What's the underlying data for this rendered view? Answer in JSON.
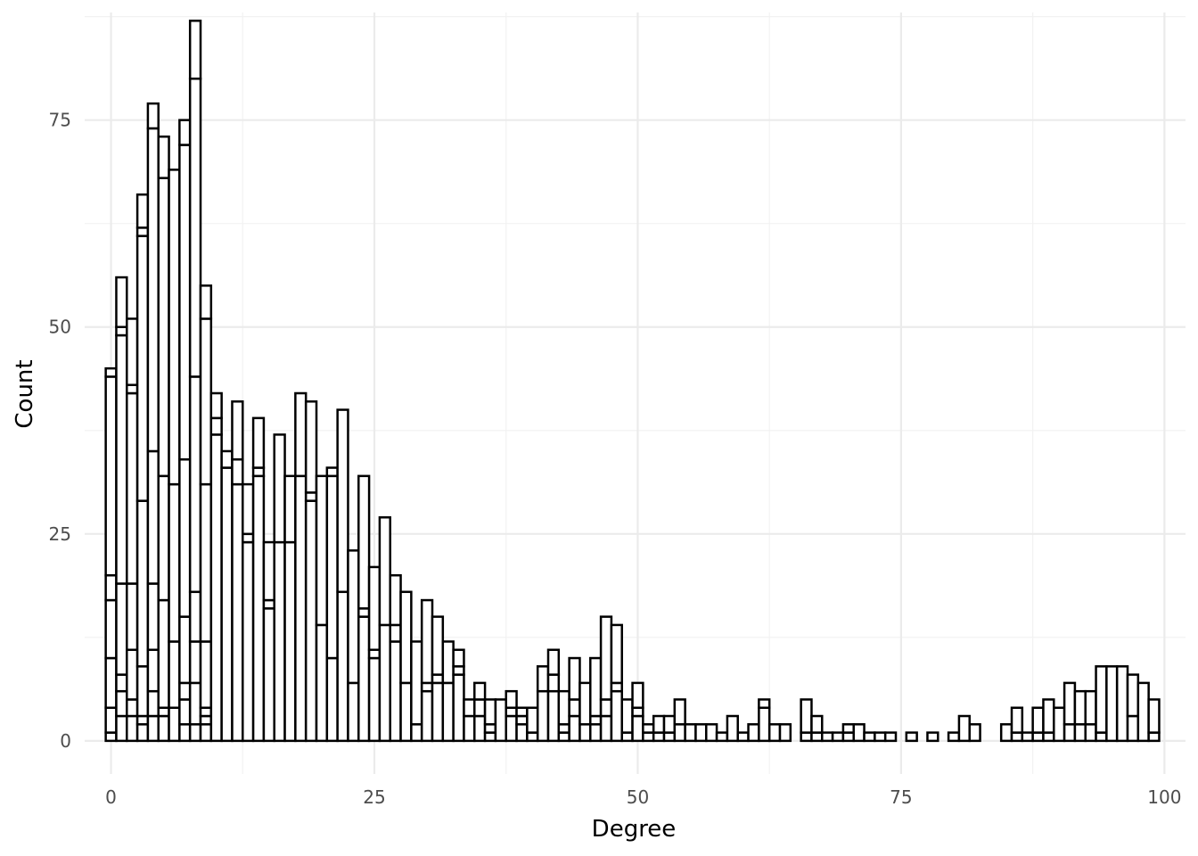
{
  "chart_data": {
    "type": "bar",
    "subtype": "stacked-histogram",
    "xlabel": "Degree",
    "ylabel": "Count",
    "xlim": [
      -2.5,
      102
    ],
    "ylim": [
      -4,
      88
    ],
    "x_ticks": [
      0,
      25,
      50,
      75,
      100
    ],
    "y_ticks": [
      0,
      25,
      50,
      75
    ],
    "grid": true,
    "legend": "none",
    "bin_width": 1,
    "bar_fill": "#ffffff",
    "bar_stroke": "#000000",
    "bins": [
      {
        "x": 0,
        "stack": [
          1,
          4,
          10,
          17,
          20,
          44,
          45
        ]
      },
      {
        "x": 1,
        "stack": [
          3,
          6,
          8,
          19,
          49,
          50,
          56
        ]
      },
      {
        "x": 2,
        "stack": [
          3,
          5,
          11,
          19,
          42,
          43,
          51
        ]
      },
      {
        "x": 3,
        "stack": [
          2,
          3,
          9,
          29,
          61,
          62,
          66
        ]
      },
      {
        "x": 4,
        "stack": [
          3,
          6,
          11,
          19,
          35,
          74,
          77
        ]
      },
      {
        "x": 5,
        "stack": [
          3,
          4,
          17,
          32,
          68,
          73
        ]
      },
      {
        "x": 6,
        "stack": [
          4,
          12,
          31,
          69
        ]
      },
      {
        "x": 7,
        "stack": [
          2,
          5,
          7,
          15,
          34,
          72,
          75
        ]
      },
      {
        "x": 8,
        "stack": [
          2,
          7,
          12,
          18,
          44,
          80,
          87
        ]
      },
      {
        "x": 9,
        "stack": [
          2,
          3,
          4,
          12,
          31,
          51,
          55
        ]
      },
      {
        "x": 10,
        "stack": [
          37,
          39,
          42
        ]
      },
      {
        "x": 11,
        "stack": [
          33,
          35
        ]
      },
      {
        "x": 12,
        "stack": [
          31,
          34,
          41
        ]
      },
      {
        "x": 13,
        "stack": [
          24,
          25,
          31
        ]
      },
      {
        "x": 14,
        "stack": [
          32,
          33,
          39
        ]
      },
      {
        "x": 15,
        "stack": [
          16,
          17,
          24
        ]
      },
      {
        "x": 16,
        "stack": [
          24,
          37
        ]
      },
      {
        "x": 17,
        "stack": [
          24,
          32
        ]
      },
      {
        "x": 18,
        "stack": [
          32,
          42
        ]
      },
      {
        "x": 19,
        "stack": [
          29,
          30,
          41
        ]
      },
      {
        "x": 20,
        "stack": [
          14,
          32
        ]
      },
      {
        "x": 21,
        "stack": [
          10,
          32,
          33
        ]
      },
      {
        "x": 22,
        "stack": [
          18,
          40
        ]
      },
      {
        "x": 23,
        "stack": [
          7,
          23
        ]
      },
      {
        "x": 24,
        "stack": [
          15,
          16,
          32
        ]
      },
      {
        "x": 25,
        "stack": [
          10,
          11,
          21
        ]
      },
      {
        "x": 26,
        "stack": [
          14,
          27
        ]
      },
      {
        "x": 27,
        "stack": [
          12,
          14,
          20
        ]
      },
      {
        "x": 28,
        "stack": [
          7,
          18
        ]
      },
      {
        "x": 29,
        "stack": [
          2,
          12
        ]
      },
      {
        "x": 30,
        "stack": [
          6,
          7,
          17
        ]
      },
      {
        "x": 31,
        "stack": [
          7,
          8,
          15
        ]
      },
      {
        "x": 32,
        "stack": [
          7,
          12
        ]
      },
      {
        "x": 33,
        "stack": [
          8,
          9,
          11
        ]
      },
      {
        "x": 34,
        "stack": [
          3,
          5
        ]
      },
      {
        "x": 35,
        "stack": [
          3,
          5,
          7
        ]
      },
      {
        "x": 36,
        "stack": [
          1,
          2,
          5
        ]
      },
      {
        "x": 37,
        "stack": [
          5
        ]
      },
      {
        "x": 38,
        "stack": [
          3,
          4,
          6
        ]
      },
      {
        "x": 39,
        "stack": [
          2,
          3,
          4
        ]
      },
      {
        "x": 40,
        "stack": [
          1,
          4
        ]
      },
      {
        "x": 41,
        "stack": [
          6,
          9
        ]
      },
      {
        "x": 42,
        "stack": [
          6,
          8,
          11
        ]
      },
      {
        "x": 43,
        "stack": [
          1,
          2,
          6
        ]
      },
      {
        "x": 44,
        "stack": [
          3,
          5,
          10
        ]
      },
      {
        "x": 45,
        "stack": [
          2,
          7
        ]
      },
      {
        "x": 46,
        "stack": [
          2,
          3,
          10
        ]
      },
      {
        "x": 47,
        "stack": [
          3,
          5,
          15
        ]
      },
      {
        "x": 48,
        "stack": [
          6,
          7,
          14
        ]
      },
      {
        "x": 49,
        "stack": [
          1,
          5
        ]
      },
      {
        "x": 50,
        "stack": [
          3,
          4,
          7
        ]
      },
      {
        "x": 51,
        "stack": [
          1,
          2
        ]
      },
      {
        "x": 52,
        "stack": [
          1,
          3
        ]
      },
      {
        "x": 53,
        "stack": [
          1,
          3
        ]
      },
      {
        "x": 54,
        "stack": [
          2,
          5
        ]
      },
      {
        "x": 55,
        "stack": [
          2
        ]
      },
      {
        "x": 56,
        "stack": [
          2
        ]
      },
      {
        "x": 57,
        "stack": [
          2
        ]
      },
      {
        "x": 58,
        "stack": [
          1
        ]
      },
      {
        "x": 59,
        "stack": [
          3
        ]
      },
      {
        "x": 60,
        "stack": [
          1
        ]
      },
      {
        "x": 61,
        "stack": [
          2
        ]
      },
      {
        "x": 62,
        "stack": [
          4,
          5
        ]
      },
      {
        "x": 63,
        "stack": [
          2
        ]
      },
      {
        "x": 64,
        "stack": [
          2
        ]
      },
      {
        "x": 66,
        "stack": [
          1,
          5
        ]
      },
      {
        "x": 67,
        "stack": [
          1,
          3
        ]
      },
      {
        "x": 68,
        "stack": [
          1
        ]
      },
      {
        "x": 69,
        "stack": [
          1
        ]
      },
      {
        "x": 70,
        "stack": [
          1,
          2
        ]
      },
      {
        "x": 71,
        "stack": [
          2
        ]
      },
      {
        "x": 72,
        "stack": [
          1
        ]
      },
      {
        "x": 73,
        "stack": [
          1
        ]
      },
      {
        "x": 74,
        "stack": [
          1
        ]
      },
      {
        "x": 76,
        "stack": [
          1
        ]
      },
      {
        "x": 78,
        "stack": [
          1
        ]
      },
      {
        "x": 80,
        "stack": [
          1
        ]
      },
      {
        "x": 81,
        "stack": [
          3
        ]
      },
      {
        "x": 82,
        "stack": [
          2
        ]
      },
      {
        "x": 85,
        "stack": [
          2
        ]
      },
      {
        "x": 86,
        "stack": [
          1,
          4
        ]
      },
      {
        "x": 87,
        "stack": [
          1
        ]
      },
      {
        "x": 88,
        "stack": [
          1,
          4
        ]
      },
      {
        "x": 89,
        "stack": [
          1,
          5
        ]
      },
      {
        "x": 90,
        "stack": [
          4
        ]
      },
      {
        "x": 91,
        "stack": [
          2,
          7
        ]
      },
      {
        "x": 92,
        "stack": [
          2,
          6
        ]
      },
      {
        "x": 93,
        "stack": [
          2,
          6
        ]
      },
      {
        "x": 94,
        "stack": [
          1,
          9
        ]
      },
      {
        "x": 95,
        "stack": [
          9
        ]
      },
      {
        "x": 96,
        "stack": [
          9
        ]
      },
      {
        "x": 97,
        "stack": [
          3,
          8
        ]
      },
      {
        "x": 98,
        "stack": [
          7
        ]
      },
      {
        "x": 99,
        "stack": [
          1,
          5
        ]
      }
    ]
  }
}
